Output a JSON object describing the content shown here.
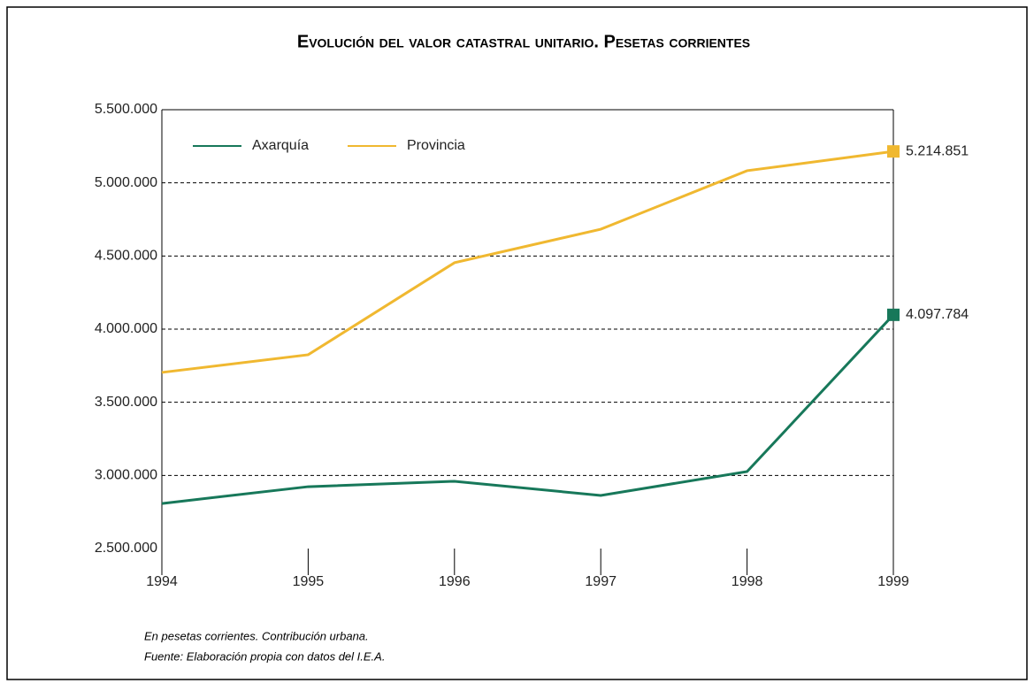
{
  "chart_data": {
    "type": "line",
    "title": "Evolución del valor catastral unitario. Pesetas corrientes",
    "categories": [
      "1994",
      "1995",
      "1996",
      "1997",
      "1998",
      "1999"
    ],
    "series": [
      {
        "name": "Axarquía",
        "color": "#17785a",
        "values": [
          2808000,
          2923000,
          2960000,
          2863000,
          3026000,
          4097784
        ],
        "value_labels": [
          null,
          null,
          null,
          null,
          null,
          "4.097.784"
        ]
      },
      {
        "name": "Provincia",
        "color": "#f0b830",
        "values": [
          3704000,
          3825000,
          4454000,
          4683000,
          5083000,
          5214851
        ],
        "value_labels": [
          null,
          null,
          null,
          null,
          null,
          "5.214.851"
        ]
      }
    ],
    "ylim": [
      2500000,
      5500000
    ],
    "yticks": [
      {
        "value": 2500000,
        "label": "2.500.000"
      },
      {
        "value": 3000000,
        "label": "3.000.000"
      },
      {
        "value": 3500000,
        "label": "3.500.000"
      },
      {
        "value": 4000000,
        "label": "4.000.000"
      },
      {
        "value": 4500000,
        "label": "4.500.000"
      },
      {
        "value": 5000000,
        "label": "5.000.000"
      },
      {
        "value": 5500000,
        "label": "5.500.000"
      }
    ],
    "grid": true,
    "legend": "top-left",
    "notes": [
      "En pesetas corrientes. Contribución urbana.",
      "Fuente: Elaboración propia con datos del I.E.A."
    ]
  }
}
